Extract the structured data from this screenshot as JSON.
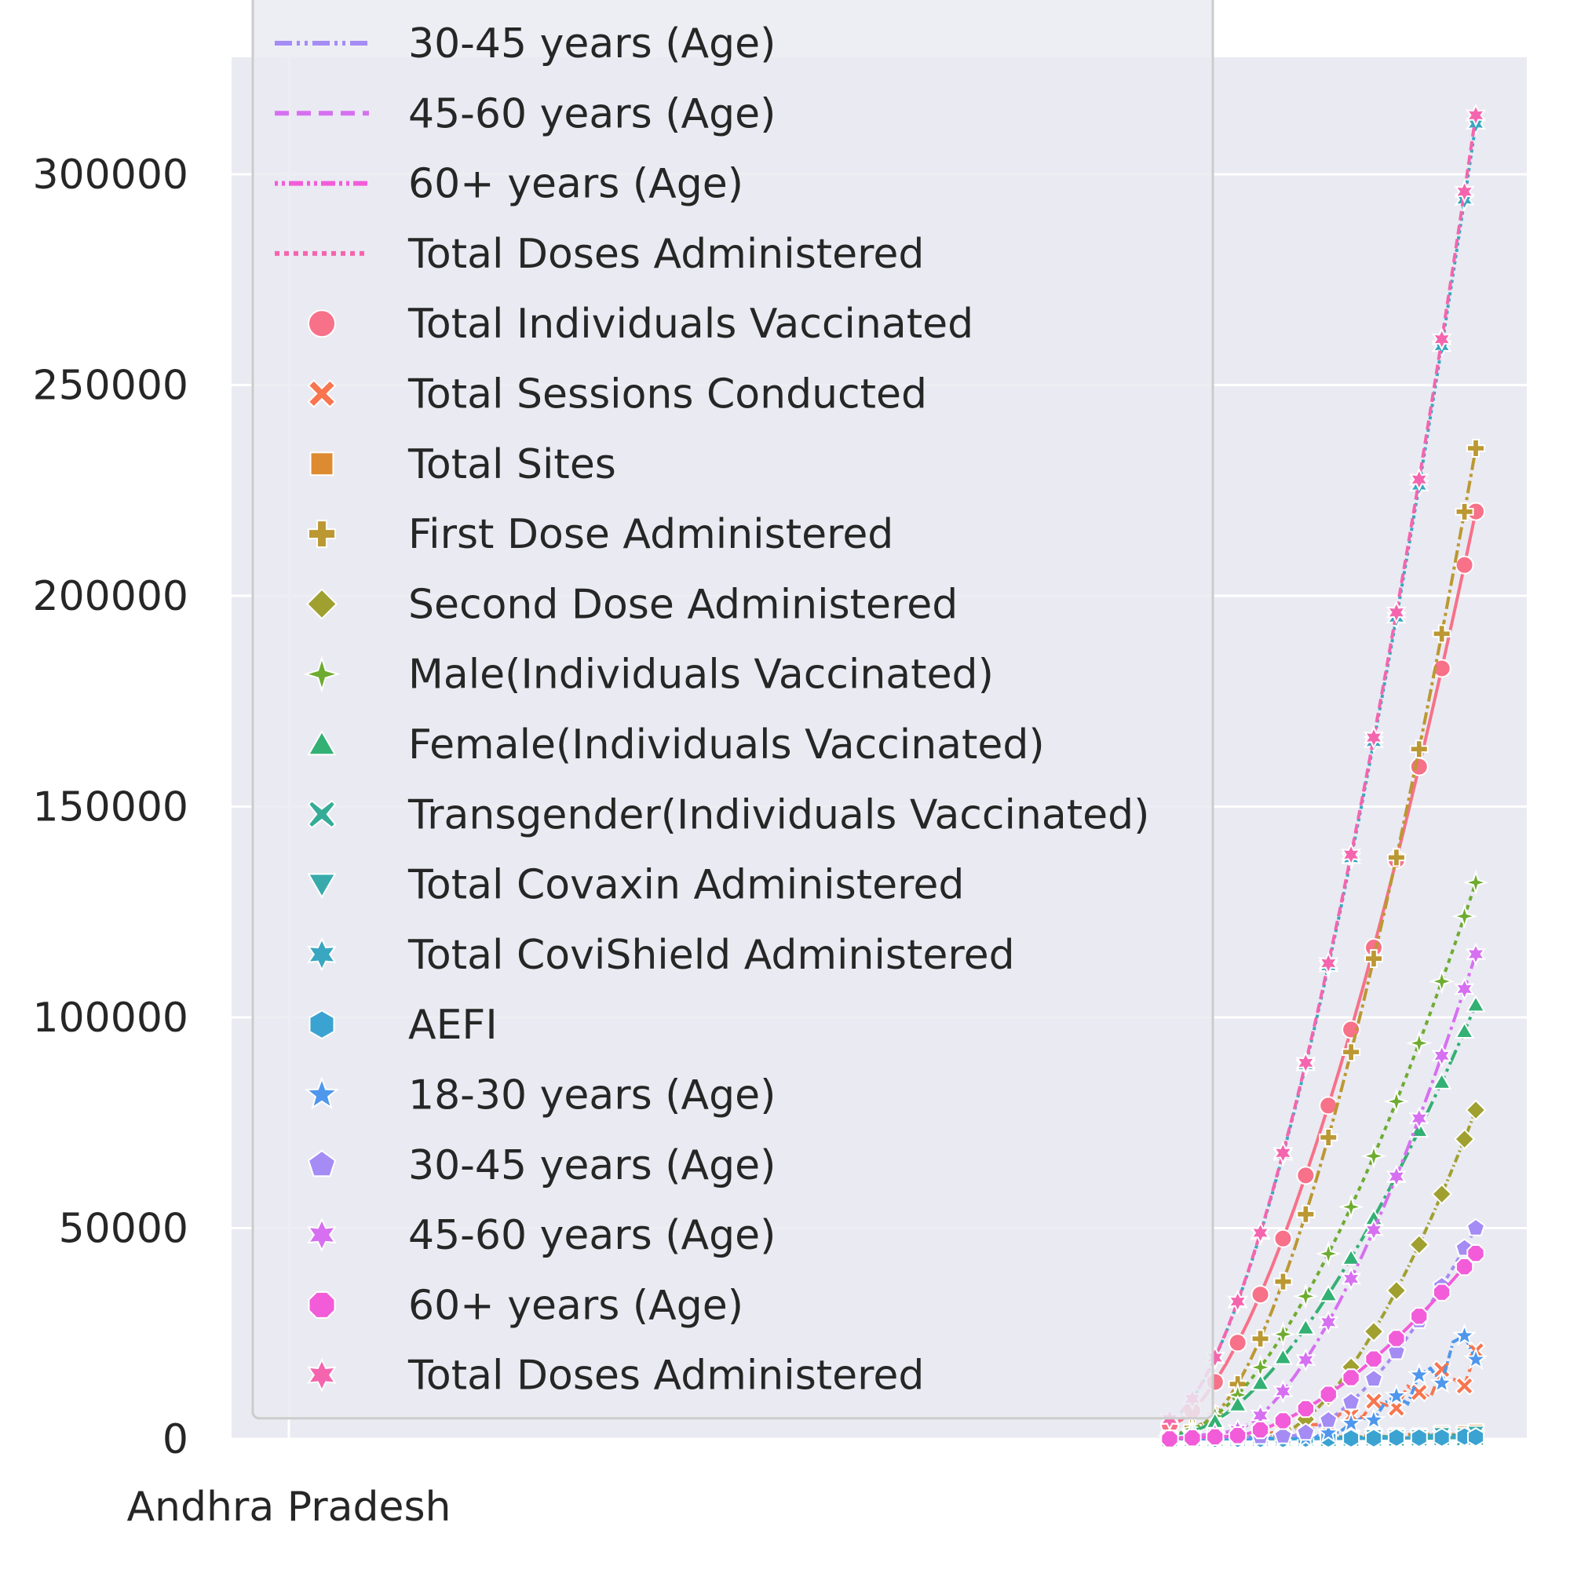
{
  "chart_data": {
    "type": "line",
    "title": "",
    "xlabel": "",
    "ylabel": "",
    "ylim": [
      0,
      330000
    ],
    "y_ticks": [
      "0",
      "50000",
      "100000",
      "150000",
      "200000",
      "250000",
      "300000"
    ],
    "x_ticks": [
      "Andhra Pradesh"
    ],
    "grid": true,
    "legend_position": "upper-left",
    "background": "#EAEAF2",
    "series": [
      {
        "name": "Total Individuals Vaccinated",
        "color": "#F77189",
        "marker": "circle",
        "final": 220000,
        "start_frac": 0.0
      },
      {
        "name": "Total Sessions Conducted",
        "color": "#F7754F",
        "marker": "x",
        "final": 17000,
        "start_frac": 0.2
      },
      {
        "name": "Total Sites",
        "color": "#DD8A30",
        "marker": "square",
        "final": 1500,
        "start_frac": 0.2
      },
      {
        "name": "First Dose Administered",
        "color": "#BB9832",
        "marker": "plus",
        "final": 235000,
        "start_frac": 0.1
      },
      {
        "name": "Second Dose Administered",
        "color": "#A0A031",
        "marker": "diamond",
        "final": 78000,
        "start_frac": 0.35
      },
      {
        "name": "Male(Individuals Vaccinated)",
        "color": "#6EAC31",
        "marker": "star4",
        "final": 132000,
        "start_frac": 0.05
      },
      {
        "name": "Female(Individuals Vaccinated)",
        "color": "#33B074",
        "marker": "triangle-up",
        "final": 103000,
        "start_frac": 0.05
      },
      {
        "name": "Transgender(Individuals Vaccinated)",
        "color": "#35AC97",
        "marker": "x-thin",
        "final": 300,
        "start_frac": 0.05
      },
      {
        "name": "Total Covaxin Administered",
        "color": "#38AAAC",
        "marker": "triangle-down",
        "final": 1200,
        "start_frac": 0.2
      },
      {
        "name": "Total CoviShield Administered",
        "color": "#39A7C1",
        "marker": "star6",
        "final": 312000,
        "start_frac": 0.0
      },
      {
        "name": "AEFI",
        "color": "#3BA3D2",
        "marker": "hexagon",
        "final": 500,
        "start_frac": 0.3
      },
      {
        "name": "18-30 years (Age)",
        "color": "#4F97EC",
        "marker": "star",
        "final": 25000,
        "start_frac": 0.45
      },
      {
        "name": "30-45 years (Age)",
        "color": "#A48CF4",
        "marker": "pentagon",
        "final": 50000,
        "start_frac": 0.4
      },
      {
        "name": "45-60 years (Age)",
        "color": "#D670F1",
        "marker": "star6",
        "final": 115000,
        "start_frac": 0.2
      },
      {
        "name": "60+ years (Age)",
        "color": "#F25CD9",
        "marker": "octagon",
        "final": 44000,
        "start_frac": 0.2
      },
      {
        "name": "Total Doses Administered",
        "color": "#F565AE",
        "marker": "star6",
        "final": 314000,
        "start_frac": 0.0
      }
    ],
    "legend_line_entries": [
      {
        "label": "30-45 years (Age)",
        "color": "#A48CF4",
        "dash": "22 6 4 6 4 6"
      },
      {
        "label": "45-60 years (Age)",
        "color": "#D670F1",
        "dash": "18 10"
      },
      {
        "label": "60+ years (Age)",
        "color": "#F25CD9",
        "dash": "4 5 4 5 18 5"
      },
      {
        "label": "Total Doses Administered",
        "color": "#F565AE",
        "dash": "6 6"
      }
    ],
    "legend_marker_entries": [
      {
        "label": "Total Individuals Vaccinated",
        "color": "#F77189",
        "marker": "circle"
      },
      {
        "label": "Total Sessions Conducted",
        "color": "#F7754F",
        "marker": "x"
      },
      {
        "label": "Total Sites",
        "color": "#DD8A30",
        "marker": "square"
      },
      {
        "label": "First Dose Administered",
        "color": "#BB9832",
        "marker": "plus"
      },
      {
        "label": "Second Dose Administered",
        "color": "#A0A031",
        "marker": "diamond"
      },
      {
        "label": "Male(Individuals Vaccinated)",
        "color": "#6EAC31",
        "marker": "star4"
      },
      {
        "label": "Female(Individuals Vaccinated)",
        "color": "#33B074",
        "marker": "triangle-up"
      },
      {
        "label": "Transgender(Individuals Vaccinated)",
        "color": "#35AC97",
        "marker": "x-thin"
      },
      {
        "label": "Total Covaxin Administered",
        "color": "#38AAAC",
        "marker": "triangle-down"
      },
      {
        "label": "Total CoviShield Administered",
        "color": "#39A7C1",
        "marker": "star6"
      },
      {
        "label": "AEFI",
        "color": "#3BA3D2",
        "marker": "hexagon"
      },
      {
        "label": "18-30 years (Age)",
        "color": "#4F97EC",
        "marker": "star"
      },
      {
        "label": "30-45 years (Age)",
        "color": "#A48CF4",
        "marker": "pentagon"
      },
      {
        "label": "45-60 years (Age)",
        "color": "#D670F1",
        "marker": "star6"
      },
      {
        "label": "60+ years (Age)",
        "color": "#F25CD9",
        "marker": "octagon"
      },
      {
        "label": "Total Doses Administered",
        "color": "#F565AE",
        "marker": "star6"
      }
    ]
  }
}
